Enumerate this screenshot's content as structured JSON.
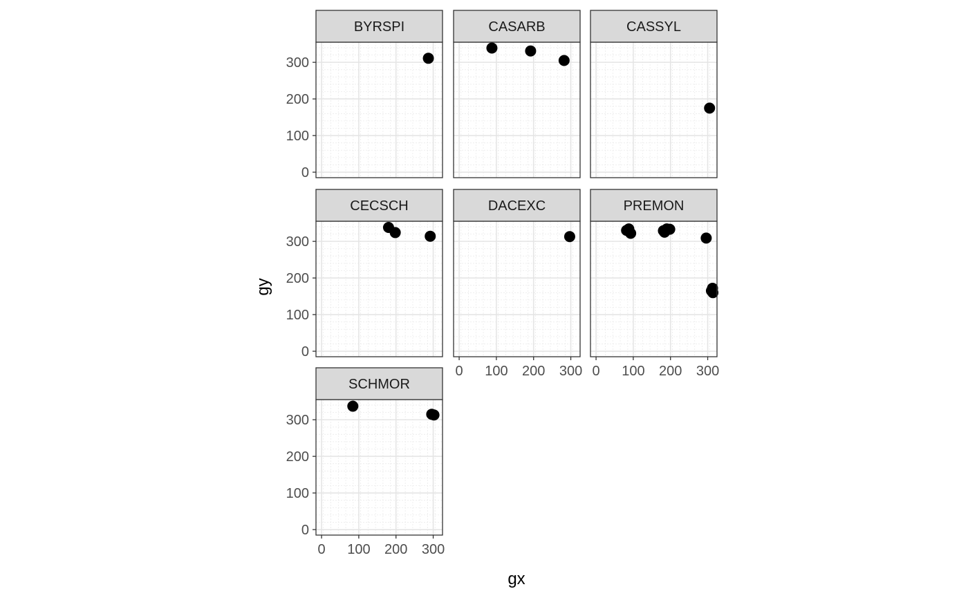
{
  "chart_data": {
    "type": "scatter",
    "facet_by": "species",
    "xlabel": "gx",
    "ylabel": "gy",
    "xlim": [
      -15,
      325
    ],
    "ylim": [
      -15,
      355
    ],
    "x_ticks": [
      0,
      100,
      200,
      300
    ],
    "y_ticks": [
      0,
      100,
      200,
      300
    ],
    "grid": true,
    "theme": "bw",
    "point_color": "#000000",
    "strip_fill": "#d9d9d9",
    "facets": [
      {
        "name": "BYRSPI",
        "points": [
          [
            287,
            311
          ]
        ]
      },
      {
        "name": "CASARB",
        "points": [
          [
            88,
            339
          ],
          [
            192,
            331
          ],
          [
            282,
            305
          ]
        ]
      },
      {
        "name": "CASSYL",
        "points": [
          [
            305,
            175
          ]
        ]
      },
      {
        "name": "CECSCH",
        "points": [
          [
            180,
            338
          ],
          [
            198,
            324
          ],
          [
            292,
            314
          ]
        ]
      },
      {
        "name": "DACEXC",
        "points": [
          [
            297,
            313
          ]
        ]
      },
      {
        "name": "PREMON",
        "points": [
          [
            82,
            330
          ],
          [
            88,
            334
          ],
          [
            93,
            322
          ],
          [
            181,
            329
          ],
          [
            184,
            325
          ],
          [
            190,
            334
          ],
          [
            198,
            333
          ],
          [
            296,
            309
          ],
          [
            310,
            165
          ],
          [
            313,
            172
          ],
          [
            314,
            160
          ]
        ]
      },
      {
        "name": "SCHMOR",
        "points": [
          [
            84,
            337
          ],
          [
            296,
            315
          ],
          [
            302,
            313
          ]
        ]
      }
    ]
  }
}
